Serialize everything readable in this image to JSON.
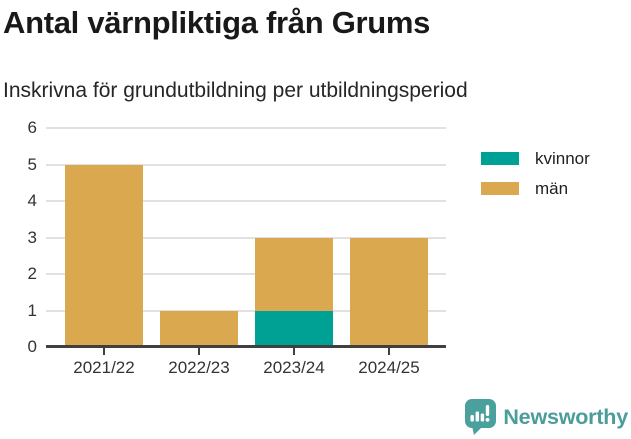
{
  "chart_data": {
    "type": "bar",
    "stacked": true,
    "title": "Antal värnpliktiga från Grums",
    "subtitle": "Inskrivna för grundutbildning per utbildningsperiod",
    "categories": [
      "2021/22",
      "2022/23",
      "2023/24",
      "2024/25"
    ],
    "series": [
      {
        "name": "kvinnor",
        "color": "#00a195",
        "values": [
          0,
          0,
          1,
          0
        ]
      },
      {
        "name": "män",
        "color": "#d9a84f",
        "values": [
          5,
          1,
          2,
          3
        ]
      }
    ],
    "stacked_totals": [
      5,
      1,
      3,
      3
    ],
    "ylim": [
      0,
      6
    ],
    "yticks": [
      0,
      1,
      2,
      3,
      4,
      5,
      6
    ],
    "grid": true,
    "legend_position": "right",
    "gridline_color": "#e1e1e1",
    "axis_color": "#404040"
  },
  "footer": {
    "brand": "Newsworthy",
    "brand_color": "#4a9d99"
  }
}
